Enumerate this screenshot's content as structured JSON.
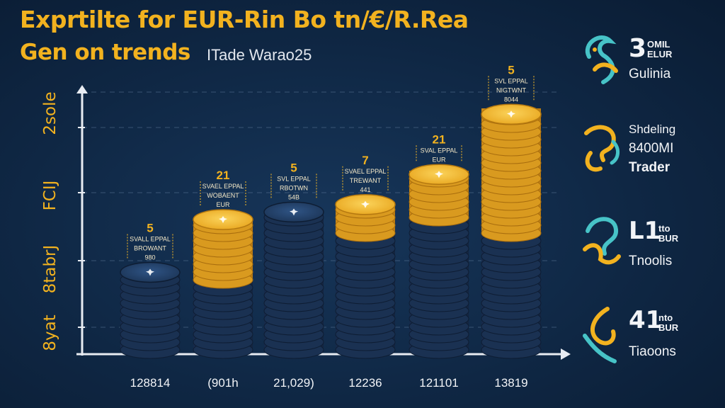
{
  "title_line1": "Exprtilte for EUR-Rin Bo tn/€/R.Rea",
  "title_line2": "Gen on trends",
  "subtitle": "ITade Warao25",
  "chart_data": {
    "type": "bar",
    "title": "Exprtilte for EUR-Rin Bo tn/€/R.Rea Gen on trends",
    "categories": [
      "128814",
      "(901h",
      "21,029)",
      "12236",
      "121101",
      "13819"
    ],
    "values": [
      1.2,
      1.9,
      2.0,
      2.1,
      2.5,
      3.3
    ],
    "gold_values": [
      0,
      1.0,
      0,
      0.5,
      0.7,
      1.7
    ],
    "ylim": [
      0,
      3.5
    ],
    "y_ticks": [
      "2sole",
      "FCIJ",
      "8tabrJ",
      "8yat"
    ],
    "annotations": [
      {
        "lines": [
          "5",
          "SVALL EPPAL",
          "BROWANT",
          "980"
        ]
      },
      {
        "lines": [
          "21",
          "SVAEL EPPAL",
          "WOBAENT",
          "EUR"
        ]
      },
      {
        "lines": [
          "5",
          "SVL EPPAL",
          "RBOTWN",
          "54B"
        ]
      },
      {
        "lines": [
          "7",
          "SVAEL EPPAL",
          "TREWANT",
          "441"
        ]
      },
      {
        "lines": [
          "21",
          "SVAL EPPAL",
          "EUR"
        ]
      },
      {
        "lines": [
          "5",
          "SVL EPPAL",
          "NIGTWNT",
          "8044"
        ]
      }
    ],
    "colors": {
      "navy": "#243e63",
      "gold": "#f0b12a",
      "axis": "#e8ecf2",
      "label": "#f2b21f"
    }
  },
  "legend": [
    {
      "big": "3",
      "small": [
        "OMIL",
        "ELUR"
      ],
      "name": "Gulinia"
    },
    {
      "small_top": "Shdeling",
      "mid": "8400MI",
      "name": "Trader"
    },
    {
      "big": "L1",
      "small": [
        "tto",
        "BUR"
      ],
      "name": "Tnoolis"
    },
    {
      "big": "41",
      "small": [
        "nto",
        "BUR"
      ],
      "name": "Tiaoons"
    }
  ]
}
